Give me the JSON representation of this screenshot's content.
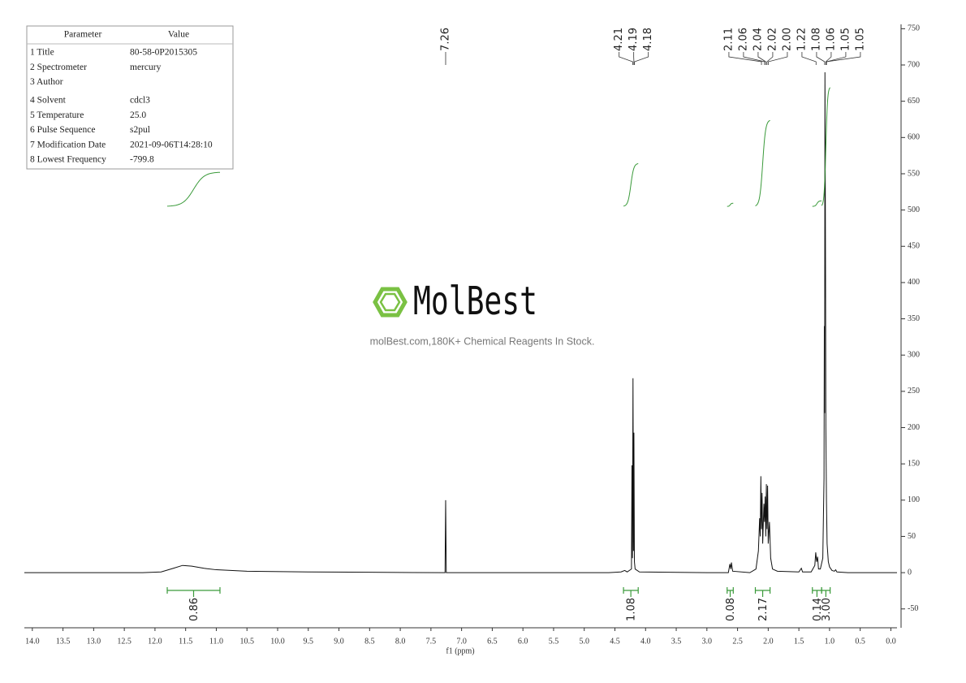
{
  "chart_data": {
    "type": "line",
    "x_label": "f1 (ppm)",
    "xlim": [
      14.13,
      -0.1
    ],
    "ylim": [
      -76,
      756
    ],
    "xticks": [
      {
        "value": 14,
        "label": "14.0"
      },
      13.5,
      {
        "value": 13,
        "label": "13.0"
      },
      12.5,
      {
        "value": 12,
        "label": "12.0"
      },
      11.5,
      {
        "value": 11,
        "label": "11.0"
      },
      10.5,
      {
        "value": 10,
        "label": "10.0"
      },
      9.5,
      {
        "value": 9,
        "label": "9.0"
      },
      8.5,
      {
        "value": 8,
        "label": "8.0"
      },
      7.5,
      {
        "value": 7,
        "label": "7.0"
      },
      6.5,
      {
        "value": 6,
        "label": "6.0"
      },
      5.5,
      {
        "value": 5,
        "label": "5.0"
      },
      4.5,
      {
        "value": 4,
        "label": "4.0"
      },
      3.5,
      {
        "value": 3,
        "label": "3.0"
      },
      2.5,
      {
        "value": 2,
        "label": "2.0"
      },
      1.5,
      {
        "value": 1,
        "label": "1.0"
      },
      0.5,
      {
        "value": 0,
        "label": "0.0"
      }
    ],
    "yticks": [
      -50,
      0,
      50,
      100,
      150,
      200,
      250,
      300,
      350,
      400,
      450,
      500,
      550,
      600,
      650,
      700,
      750
    ],
    "series": [
      {
        "color": "#111111",
        "x": [
          14.13,
          12.2,
          11.9,
          11.7,
          11.55,
          11.4,
          11.2,
          11.0,
          10.5,
          9.5,
          8.5,
          7.3,
          7.27,
          7.26,
          7.25,
          4.6,
          4.4,
          4.34,
          4.3,
          4.23,
          4.222,
          4.214,
          4.205,
          4.197,
          4.19,
          4.182,
          4.17,
          4.1,
          3.0,
          2.65,
          2.625,
          2.61,
          2.6,
          2.58,
          2.3,
          2.2,
          2.16,
          2.14,
          2.13,
          2.12,
          2.11,
          2.1,
          2.09,
          2.07,
          2.06,
          2.05,
          2.04,
          2.03,
          2.02,
          2.01,
          2.0,
          1.98,
          1.96,
          1.93,
          1.85,
          1.5,
          1.46,
          1.44,
          1.3,
          1.24,
          1.225,
          1.21,
          1.195,
          1.18,
          1.15,
          1.11,
          1.09,
          1.085,
          1.08,
          1.075,
          1.07,
          1.065,
          1.06,
          1.05,
          1.04,
          1.02,
          1.0,
          0.96,
          0.92,
          0.9,
          0.88,
          0.7,
          -0.1
        ],
        "values": [
          0,
          0,
          1,
          6,
          10,
          9,
          6,
          4,
          2,
          1,
          0.5,
          0,
          0,
          100,
          0,
          0,
          1,
          3,
          1,
          5,
          148,
          20,
          268,
          30,
          193,
          15,
          5,
          1,
          0,
          0,
          12,
          5,
          14,
          2,
          0,
          5,
          30,
          75,
          50,
          133,
          60,
          110,
          40,
          95,
          70,
          105,
          50,
          122,
          60,
          120,
          40,
          70,
          20,
          5,
          2,
          1,
          6,
          1,
          1,
          10,
          28,
          15,
          22,
          5,
          5,
          20,
          130,
          340,
          220,
          690,
          560,
          410,
          200,
          100,
          40,
          15,
          8,
          3,
          2,
          4,
          1,
          0,
          0
        ]
      }
    ],
    "peak_labels": [
      7.26,
      4.21,
      4.19,
      4.18,
      2.11,
      2.06,
      2.04,
      2.02,
      {
        "value": 2,
        "label": "2.00"
      },
      1.22,
      1.08,
      1.06,
      1.05,
      1.05
    ],
    "integrals": {
      "color": "#3a9a3a",
      "ranges": [
        [
          11.8,
          10.94
        ],
        [
          4.36,
          4.12
        ],
        [
          2.67,
          2.57
        ],
        [
          2.21,
          1.97
        ],
        [
          1.28,
          1.13
        ],
        [
          1.13,
          0.99
        ]
      ],
      "values": [
        0.86,
        1.08,
        0.08,
        2.17,
        0.14,
        3
      ],
      "value_labels": [
        "0.86",
        "1.08",
        "0.08",
        "2.17",
        "0.14",
        "3.00"
      ]
    }
  },
  "parameters": {
    "headers": [
      "Parameter",
      "Value"
    ],
    "rows": [
      [
        "1 Title",
        "80-58-0P2015305"
      ],
      [
        "2 Spectrometer",
        "mercury"
      ],
      [
        "3 Author",
        ""
      ],
      [
        "4 Solvent",
        "cdcl3"
      ],
      [
        "5 Temperature",
        "25.0"
      ],
      [
        "6 Pulse Sequence",
        "s2pul"
      ],
      [
        "7 Modification Date",
        "2021-09-06T14:28:10"
      ],
      [
        "8 Lowest Frequency",
        "-799.8"
      ]
    ]
  },
  "watermark": {
    "brand": "MolBest",
    "tagline": "molBest.com,180K+ Chemical Reagents In Stock."
  }
}
